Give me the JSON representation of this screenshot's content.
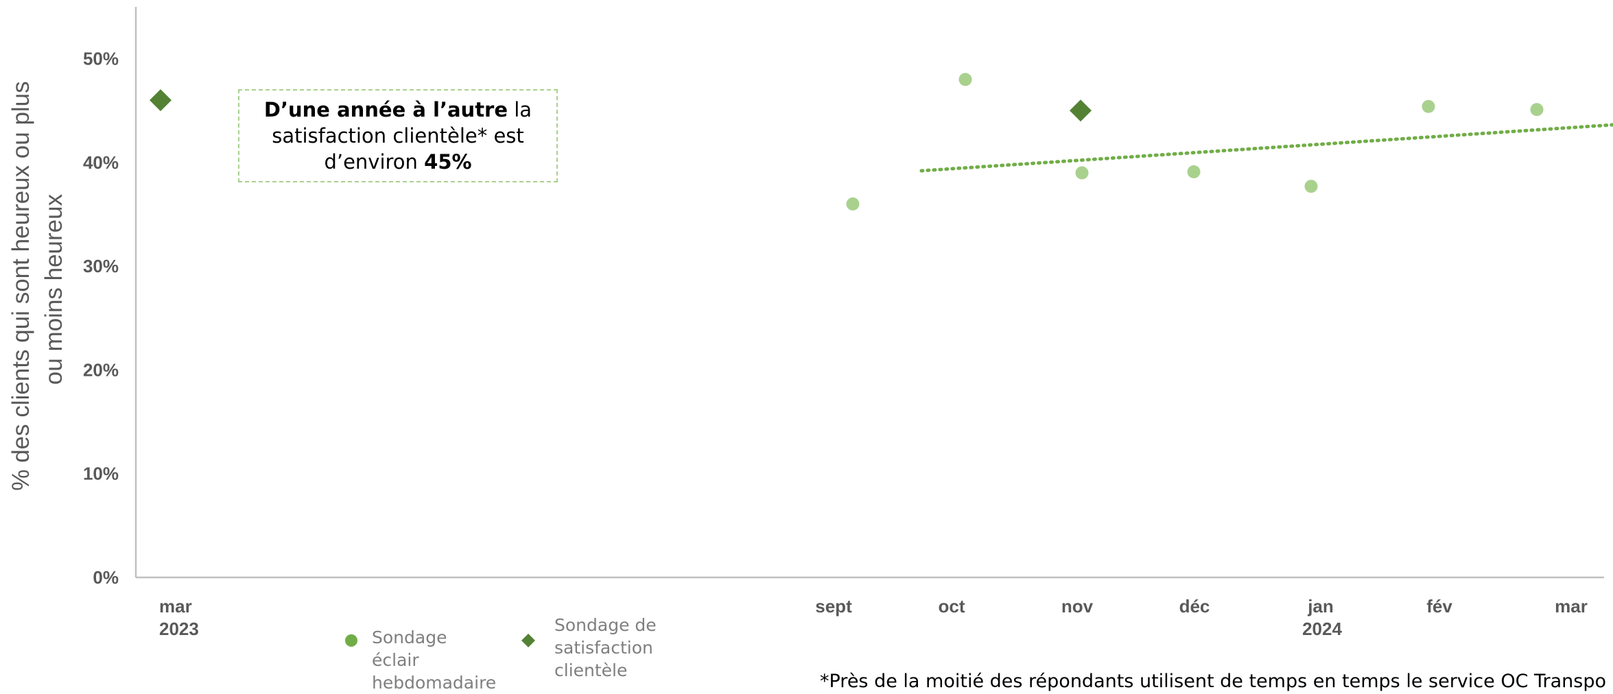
{
  "chart_data": {
    "type": "scatter",
    "ylabel": "% des clients qui sont heureux ou plus ou moins heureux",
    "ylim": [
      0,
      0.55
    ],
    "yticks": [
      "0%",
      "10%",
      "20%",
      "30%",
      "40%",
      "50%"
    ],
    "x_ticks": [
      {
        "label": "mar",
        "sub": "2023"
      },
      {
        "label": "sept",
        "sub": ""
      },
      {
        "label": "oct",
        "sub": ""
      },
      {
        "label": "nov",
        "sub": ""
      },
      {
        "label": "déc",
        "sub": ""
      },
      {
        "label": "jan",
        "sub": "2024"
      },
      {
        "label": "fév",
        "sub": ""
      },
      {
        "label": "mar",
        "sub": ""
      }
    ],
    "series": [
      {
        "name": "Sondage éclair hebdomadaire",
        "marker": "circle",
        "color": "#a9d18e",
        "points": [
          {
            "x": "2023-09-20",
            "y": 0.36
          },
          {
            "x": "2023-10-15",
            "y": 0.48
          },
          {
            "x": "2023-11-15",
            "y": 0.39
          },
          {
            "x": "2023-12-15",
            "y": 0.391
          },
          {
            "x": "2024-01-15",
            "y": 0.377
          },
          {
            "x": "2024-02-15",
            "y": 0.454
          },
          {
            "x": "2024-03-15",
            "y": 0.451
          }
        ]
      },
      {
        "name": "Sondage de satisfaction clientèle",
        "marker": "diamond",
        "color": "#548235",
        "points": [
          {
            "x": "2023-03-01",
            "y": 0.46
          },
          {
            "x": "2023-11-15",
            "y": 0.45
          }
        ]
      }
    ],
    "trendline": {
      "type": "linear",
      "series": "Sondage éclair hebdomadaire",
      "color": "#70ad47",
      "style": "dotted",
      "from": {
        "x": "2023-09-20",
        "y": 0.392
      },
      "to": {
        "x": "2024-03-20",
        "y": 0.441
      }
    },
    "annotation": {
      "bold_lead": "D’une année à l’autre",
      "middle": " la satisfaction clientèle* est d’environ ",
      "bold_tail": "45%"
    },
    "footnote": "*Près de la moitié des répondants utilisent de temps en temps le service OC Transpo"
  }
}
